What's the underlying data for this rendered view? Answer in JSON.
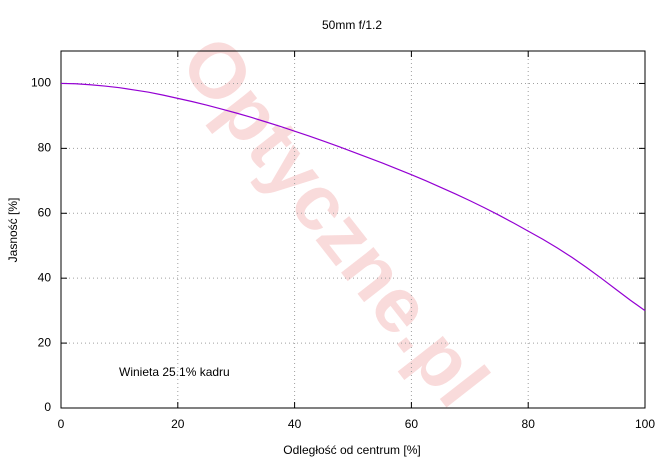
{
  "chart_data": {
    "type": "line",
    "title": "50mm f/1.2",
    "x_label": "Odległość od centrum [%]",
    "y_label": "Jasność [%]",
    "annotation": "Winieta 25.1% kadru",
    "watermark": "Optyczne.pl",
    "xlim": [
      0,
      100
    ],
    "ylim": [
      0,
      110
    ],
    "xticks": [
      0,
      20,
      40,
      60,
      80,
      100
    ],
    "yticks": [
      0,
      20,
      40,
      60,
      80,
      100
    ],
    "grid": true,
    "x": [
      0,
      2.5,
      5,
      7.5,
      10,
      12.5,
      15,
      17.5,
      20,
      22.5,
      25,
      27.5,
      30,
      32.5,
      35,
      37.5,
      40,
      42.5,
      45,
      47.5,
      50,
      52.5,
      55,
      57.5,
      60,
      62.5,
      65,
      67.5,
      70,
      72.5,
      75,
      77.5,
      80,
      82.5,
      85,
      87.5,
      90,
      92.5,
      95,
      97.5,
      100
    ],
    "series": [
      {
        "color": "#9400d3",
        "values": [
          100,
          99.9,
          99.6,
          99.2,
          98.7,
          98.0,
          97.3,
          96.4,
          95.4,
          94.4,
          93.3,
          92.1,
          90.9,
          89.6,
          88.2,
          86.8,
          85.3,
          83.8,
          82.2,
          80.6,
          78.9,
          77.2,
          75.5,
          73.7,
          71.9,
          70.0,
          68.0,
          66.0,
          63.9,
          61.7,
          59.4,
          57.0,
          54.5,
          52.0,
          49.3,
          46.4,
          43.3,
          40.0,
          36.6,
          33.2,
          30.0
        ]
      }
    ]
  }
}
